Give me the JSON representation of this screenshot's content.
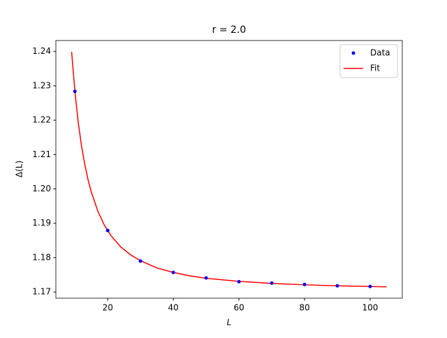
{
  "chart_data": {
    "type": "line",
    "title": "r = 2.0",
    "xlabel": "L",
    "ylabel": "Δ(L)",
    "series": [
      {
        "name": "Data",
        "color": "#0000ff",
        "style": "markers",
        "x": [
          10,
          20,
          30,
          40,
          50,
          60,
          70,
          80,
          90,
          100
        ],
        "values": [
          1.2284,
          1.1879,
          1.179,
          1.1757,
          1.1741,
          1.173,
          1.1726,
          1.1722,
          1.1718,
          1.1716
        ]
      },
      {
        "name": "Fit",
        "color": "#ff0000",
        "style": "line",
        "x": [
          9,
          10,
          11,
          12,
          13,
          14,
          15,
          17,
          19,
          21,
          24,
          27,
          30,
          35,
          40,
          45,
          50,
          60,
          70,
          80,
          90,
          105
        ],
        "values": [
          1.2399,
          1.2284,
          1.2195,
          1.2126,
          1.2072,
          1.2027,
          1.1991,
          1.1935,
          1.1894,
          1.1864,
          1.1831,
          1.1808,
          1.1791,
          1.177,
          1.1757,
          1.1747,
          1.174,
          1.1731,
          1.1725,
          1.1721,
          1.1718,
          1.1715
        ]
      }
    ],
    "xlim": [
      4.2,
      109.8
    ],
    "ylim": [
      1.1682,
      1.2432
    ],
    "xticks": [
      20,
      40,
      60,
      80,
      100
    ],
    "yticks": [
      1.17,
      1.18,
      1.19,
      {
        "value": 1.2,
        "label": "1.20"
      },
      1.21,
      1.22,
      1.23,
      1.24
    ],
    "legend": "upper right",
    "grid": false
  }
}
